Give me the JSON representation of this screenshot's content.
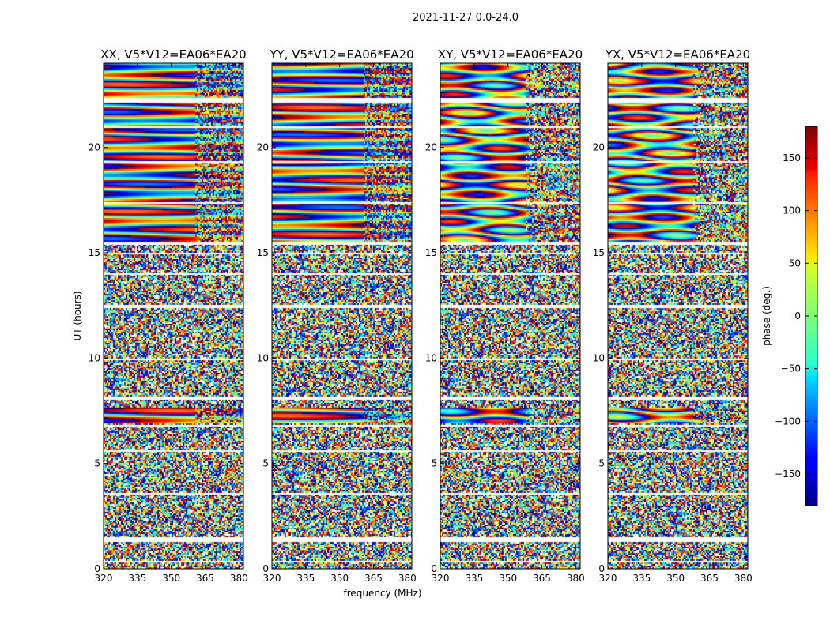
{
  "figure": {
    "suptitle": "2021-11-27 0.0-24.0"
  },
  "chart_data": {
    "type": "heatmap",
    "colormap": "jet",
    "xlabel": "frequency (MHz)",
    "ylabel": "UT (hours)",
    "xlim": [
      320,
      382
    ],
    "ylim": [
      0,
      24
    ],
    "xticks": [
      320,
      335,
      350,
      365,
      380
    ],
    "yticks": [
      0,
      5,
      10,
      15,
      20
    ],
    "colorbar": {
      "label": "phase (deg.)",
      "range": [
        -180,
        180
      ],
      "ticks": [
        -150,
        -100,
        -50,
        0,
        50,
        100,
        150
      ],
      "tick_labels": [
        "−150",
        "−100",
        "−50",
        "0",
        "50",
        "100",
        "150"
      ]
    },
    "panels": [
      {
        "title": "XX, V5*V12=EA06*EA20",
        "polarization": "XX"
      },
      {
        "title": "YY, V5*V12=EA06*EA20",
        "polarization": "YY"
      },
      {
        "title": "XY, V5*V12=EA06*EA20",
        "polarization": "XY"
      },
      {
        "title": "YX, V5*V12=EA06*EA20",
        "polarization": "YX"
      }
    ],
    "coherent_ut_ranges": [
      [
        15.6,
        24.0
      ],
      [
        6.9,
        7.7
      ]
    ],
    "blank_ut_ranges": [
      [
        0.3,
        0.4
      ],
      [
        1.3,
        1.5
      ],
      [
        3.6,
        3.65
      ],
      [
        5.6,
        5.65
      ],
      [
        6.8,
        6.85
      ],
      [
        8.1,
        8.2
      ],
      [
        9.9,
        10.0
      ],
      [
        12.4,
        12.6
      ],
      [
        13.3,
        13.35
      ],
      [
        14.0,
        14.05
      ],
      [
        15.0,
        15.05
      ],
      [
        15.4,
        15.55
      ],
      [
        22.2,
        22.35
      ],
      [
        21.0,
        21.05
      ],
      [
        19.3,
        19.35
      ],
      [
        17.4,
        17.45
      ]
    ]
  }
}
